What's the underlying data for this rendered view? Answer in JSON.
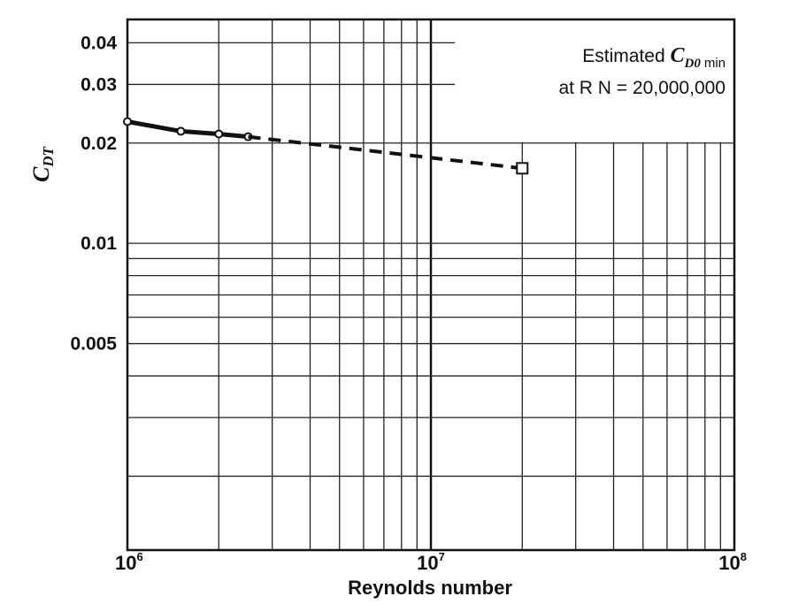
{
  "chart_data": {
    "type": "line",
    "xscale": "log",
    "yscale": "log",
    "xlim": [
      1000000,
      100000000
    ],
    "ylim": [
      0.0012,
      0.047
    ],
    "xlabel": "Reynolds number",
    "ylabel": {
      "main": "C",
      "sub": "DT"
    },
    "x_ticks": [
      {
        "value": 1000000,
        "base": "10",
        "exp": "6"
      },
      {
        "value": 10000000,
        "base": "10",
        "exp": "7"
      },
      {
        "value": 100000000,
        "base": "10",
        "exp": "8"
      }
    ],
    "y_ticks": [
      {
        "value": 0.04,
        "label": "0.04"
      },
      {
        "value": 0.03,
        "label": "0.03"
      },
      {
        "value": 0.02,
        "label": "0.02"
      },
      {
        "value": 0.01,
        "label": "0.01"
      },
      {
        "value": 0.005,
        "label": "0.005"
      }
    ],
    "grid": true,
    "series": [
      {
        "style": "solid",
        "marker": "circle",
        "x": [
          1000000,
          1500000,
          2000000,
          2500000
        ],
        "y": [
          0.0232,
          0.0217,
          0.0213,
          0.0209
        ]
      },
      {
        "style": "dashed",
        "marker": "none",
        "x": [
          2500000,
          20000000
        ],
        "y": [
          0.0209,
          0.0168
        ]
      },
      {
        "style": "none",
        "marker": "square",
        "x": [
          20000000
        ],
        "y": [
          0.0168
        ]
      }
    ],
    "annotation": {
      "line1_prefix": "Estimated ",
      "symbol": "C",
      "symbol_sub": "D0",
      "symbol_min": "min",
      "line2": "at R N  = 20,000,000"
    }
  }
}
